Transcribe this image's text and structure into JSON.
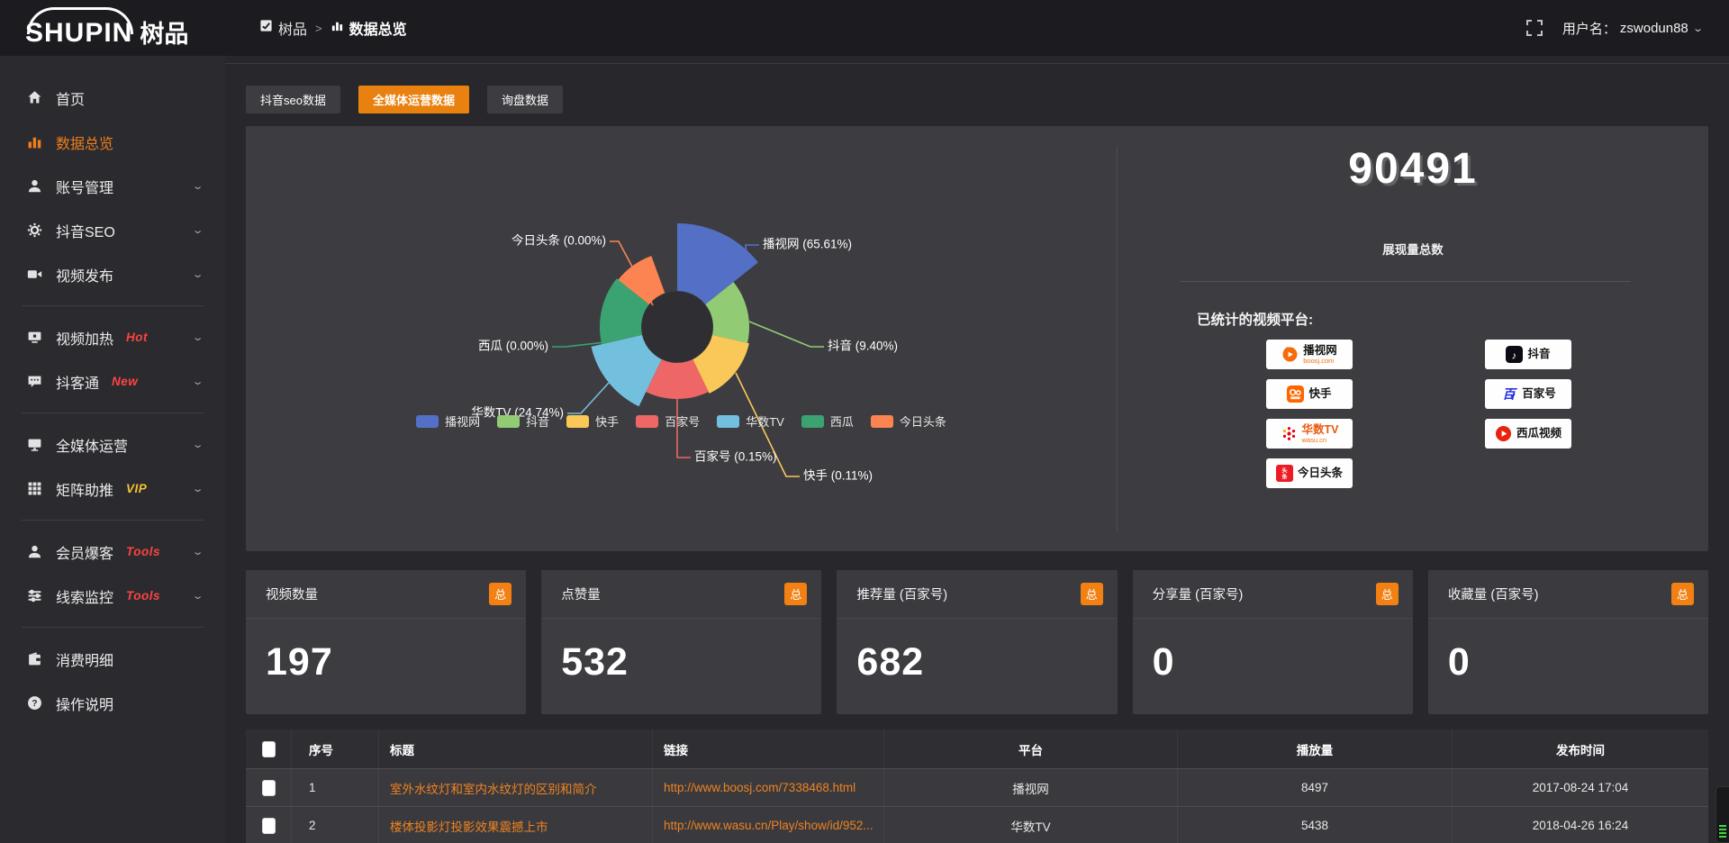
{
  "topbar": {
    "logo_en": "SHUPIN",
    "logo_cjk": "树品",
    "breadcrumb_root": "树品",
    "breadcrumb_sep": ">",
    "breadcrumb_current": "数据总览",
    "username_label": "用户名：",
    "username": "zswodun88"
  },
  "sidebar": {
    "groups": [
      [
        {
          "icon": "home",
          "label": "首页"
        },
        {
          "icon": "bar-chart",
          "label": "数据总览",
          "active": true
        },
        {
          "icon": "user",
          "label": "账号管理",
          "expandable": true
        },
        {
          "icon": "gear",
          "label": "抖音SEO",
          "expandable": true
        },
        {
          "icon": "video-camera",
          "label": "视频发布",
          "expandable": true
        }
      ],
      [
        {
          "icon": "heat",
          "label": "视频加热",
          "badge": "Hot",
          "badge_color": "red",
          "expandable": true
        },
        {
          "icon": "chat",
          "label": "抖客通",
          "badge": "New",
          "badge_color": "red",
          "expandable": true
        }
      ],
      [
        {
          "icon": "monitor",
          "label": "全媒体运营",
          "expandable": true
        },
        {
          "icon": "grid",
          "label": "矩阵助推",
          "badge": "VIP",
          "badge_color": "gold",
          "expandable": true
        }
      ],
      [
        {
          "icon": "member",
          "label": "会员爆客",
          "badge": "Tools",
          "badge_color": "red",
          "expandable": true
        },
        {
          "icon": "sliders",
          "label": "线索监控",
          "badge": "Tools",
          "badge_color": "red",
          "expandable": true
        }
      ],
      [
        {
          "icon": "wallet",
          "label": "消费明细"
        },
        {
          "icon": "question",
          "label": "操作说明"
        }
      ]
    ]
  },
  "tabs": [
    {
      "label": "抖音seo数据",
      "active": false
    },
    {
      "label": "全媒体运营数据",
      "active": true
    },
    {
      "label": "询盘数据",
      "active": false
    }
  ],
  "chart_data": {
    "type": "pie",
    "rose": true,
    "items": [
      {
        "name": "播视网",
        "pct": 65.61,
        "color": "#5470c6"
      },
      {
        "name": "抖音",
        "pct": 9.4,
        "color": "#91cc75"
      },
      {
        "name": "快手",
        "pct": 0.11,
        "color": "#fac858"
      },
      {
        "name": "百家号",
        "pct": 0.15,
        "color": "#ee6666"
      },
      {
        "name": "华数TV",
        "pct": 24.74,
        "color": "#73c0de"
      },
      {
        "name": "西瓜",
        "pct": 0.0,
        "color": "#3ba272"
      },
      {
        "name": "今日头条",
        "pct": 0.0,
        "color": "#fc8452"
      }
    ],
    "legend_position": "bottom"
  },
  "summary": {
    "total_value": "90491",
    "total_label": "展现量总数",
    "platforms_label": "已统计的视频平台:",
    "platforms_left": [
      {
        "label": "播视网",
        "sub": "boosj.com",
        "logo": "boosj"
      },
      {
        "label": "快手",
        "sub": "",
        "logo": "kuaishou"
      },
      {
        "label": "华数TV",
        "sub": "wasu.cn",
        "logo": "wasu"
      },
      {
        "label": "今日头条",
        "sub": "",
        "logo": "toutiao"
      }
    ],
    "platforms_right": [
      {
        "label": "抖音",
        "sub": "",
        "logo": "douyin"
      },
      {
        "label": "百家号",
        "sub": "",
        "logo": "baijiahao"
      },
      {
        "label": "西瓜视频",
        "sub": "",
        "logo": "xigua"
      }
    ]
  },
  "stat_cards": [
    {
      "label": "视频数量",
      "value": "197",
      "badge": "总"
    },
    {
      "label": "点赞量",
      "value": "532",
      "badge": "总"
    },
    {
      "label": "推荐量 (百家号)",
      "value": "682",
      "badge": "总"
    },
    {
      "label": "分享量 (百家号)",
      "value": "0",
      "badge": "总"
    },
    {
      "label": "收藏量 (百家号)",
      "value": "0",
      "badge": "总"
    }
  ],
  "table": {
    "headers": [
      "序号",
      "标题",
      "链接",
      "平台",
      "播放量",
      "发布时间"
    ],
    "rows": [
      [
        "1",
        "室外水纹灯和室内水纹灯的区别和简介",
        "http://www.boosj.com/7338468.html",
        "播视网",
        "8497",
        "2017-08-24 17:04"
      ],
      [
        "2",
        "楼体投影灯投影效果震撼上市",
        "http://www.wasu.cn/Play/show/id/952...",
        "华数TV",
        "5438",
        "2018-04-26 16:24"
      ]
    ]
  }
}
